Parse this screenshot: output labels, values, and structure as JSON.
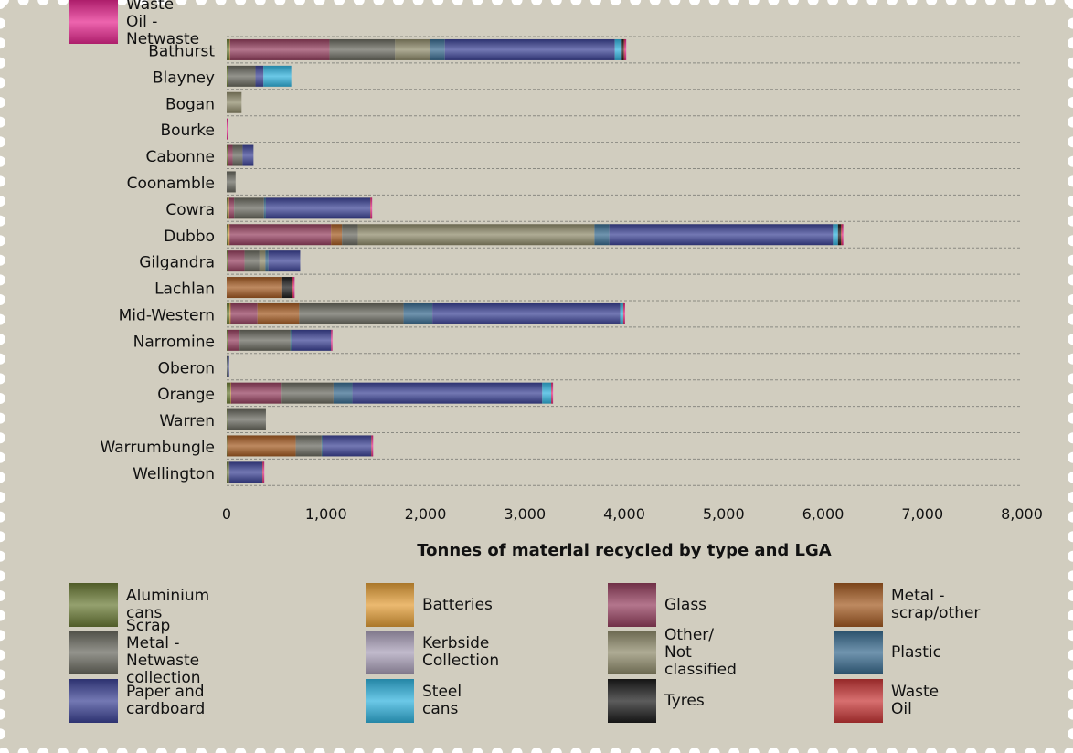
{
  "chart_data": {
    "type": "bar",
    "orientation": "horizontal",
    "stacked": true,
    "title": "",
    "xlabel": "Tonnes of material recycled by type and LGA",
    "ylabel": "",
    "xlim": [
      0,
      8000
    ],
    "x_ticks": [
      "0",
      "1,000",
      "2,000",
      "3,000",
      "4,000",
      "5,000",
      "6,000",
      "7,000",
      "8,000"
    ],
    "grid": true,
    "legend_position": "bottom",
    "categories": [
      "Bathurst",
      "Blayney",
      "Bogan",
      "Bourke",
      "Cabonne",
      "Coonamble",
      "Cowra",
      "Dubbo",
      "Gilgandra",
      "Lachlan",
      "Mid-Western",
      "Narromine",
      "Oberon",
      "Orange",
      "Warren",
      "Warrumbungle",
      "Wellington"
    ],
    "series": [
      {
        "name": "Aluminium cans",
        "color": "#6b7b35",
        "values": [
          30,
          10,
          0,
          0,
          10,
          0,
          20,
          20,
          10,
          0,
          30,
          10,
          5,
          40,
          5,
          5,
          20
        ]
      },
      {
        "name": "Batteries",
        "color": "#e39e38",
        "values": [
          5,
          0,
          0,
          0,
          0,
          0,
          5,
          10,
          0,
          0,
          10,
          0,
          0,
          5,
          0,
          0,
          0
        ]
      },
      {
        "name": "Glass",
        "color": "#95405f",
        "values": [
          1000,
          0,
          0,
          0,
          50,
          0,
          50,
          1020,
          170,
          0,
          270,
          120,
          0,
          500,
          0,
          0,
          0
        ]
      },
      {
        "name": "Metal - scrap/other",
        "color": "#a45b22",
        "values": [
          0,
          0,
          0,
          0,
          0,
          0,
          0,
          110,
          0,
          550,
          420,
          0,
          0,
          0,
          0,
          690,
          0
        ]
      },
      {
        "name": "Scrap Metal - Netwaste collection",
        "color": "#69695f",
        "values": [
          660,
          280,
          0,
          0,
          100,
          90,
          300,
          160,
          150,
          0,
          1050,
          510,
          0,
          530,
          390,
          260,
          10
        ]
      },
      {
        "name": "Kerbside Collection",
        "color": "#a99fb8",
        "values": [
          0,
          0,
          0,
          0,
          0,
          0,
          0,
          0,
          0,
          0,
          0,
          0,
          0,
          0,
          0,
          0,
          0
        ]
      },
      {
        "name": "Other/ Not classified",
        "color": "#8f8b6b",
        "values": [
          350,
          0,
          150,
          0,
          0,
          0,
          0,
          2380,
          60,
          0,
          0,
          0,
          0,
          0,
          0,
          0,
          0
        ]
      },
      {
        "name": "Plastic",
        "color": "#386b8f",
        "values": [
          150,
          0,
          0,
          0,
          0,
          0,
          20,
          150,
          30,
          0,
          290,
          20,
          0,
          190,
          0,
          10,
          0
        ]
      },
      {
        "name": "Paper and cardboard",
        "color": "#3c4395",
        "values": [
          1710,
          80,
          0,
          0,
          110,
          0,
          1050,
          2250,
          320,
          0,
          1890,
          390,
          20,
          1910,
          0,
          490,
          330
        ]
      },
      {
        "name": "Steel cans",
        "color": "#31b2dd",
        "values": [
          70,
          280,
          0,
          0,
          0,
          0,
          0,
          50,
          0,
          0,
          30,
          0,
          0,
          90,
          0,
          0,
          0
        ]
      },
      {
        "name": "Tyres",
        "color": "#1c1c1c",
        "values": [
          20,
          0,
          0,
          0,
          0,
          0,
          0,
          30,
          0,
          110,
          0,
          0,
          0,
          0,
          0,
          0,
          0
        ]
      },
      {
        "name": "Waste Oil",
        "color": "#c83737",
        "values": [
          10,
          0,
          0,
          0,
          0,
          0,
          5,
          10,
          0,
          10,
          5,
          0,
          0,
          5,
          0,
          5,
          5
        ]
      },
      {
        "name": "Waste Oil - Netwaste",
        "color": "#e6288f",
        "values": [
          15,
          0,
          0,
          15,
          0,
          0,
          5,
          10,
          0,
          5,
          10,
          10,
          0,
          5,
          0,
          5,
          5
        ]
      }
    ]
  },
  "legend": [
    {
      "label": "Aluminium cans",
      "color": "#6b7b35"
    },
    {
      "label": "Batteries",
      "color": "#e39e38"
    },
    {
      "label": "Glass",
      "color": "#95405f"
    },
    {
      "label": "Metal -\nscrap/other",
      "color": "#a45b22"
    },
    {
      "label": "Scrap Metal -\nNetwaste collection",
      "color": "#69695f"
    },
    {
      "label": "Kerbside\nCollection",
      "color": "#a99fb8"
    },
    {
      "label": "Other/\nNot classified",
      "color": "#8f8b6b"
    },
    {
      "label": "Plastic",
      "color": "#386b8f"
    },
    {
      "label": "Paper and cardboard",
      "color": "#3c4395"
    },
    {
      "label": "Steel cans",
      "color": "#31b2dd"
    },
    {
      "label": "Tyres",
      "color": "#1c1c1c"
    },
    {
      "label": "Waste Oil",
      "color": "#c83737"
    },
    {
      "label": "Waste Oil -\nNetwaste",
      "color": "#e6288f"
    }
  ],
  "colors": {
    "frame": "#d1cdbf",
    "gridline": "#8a8a82"
  }
}
